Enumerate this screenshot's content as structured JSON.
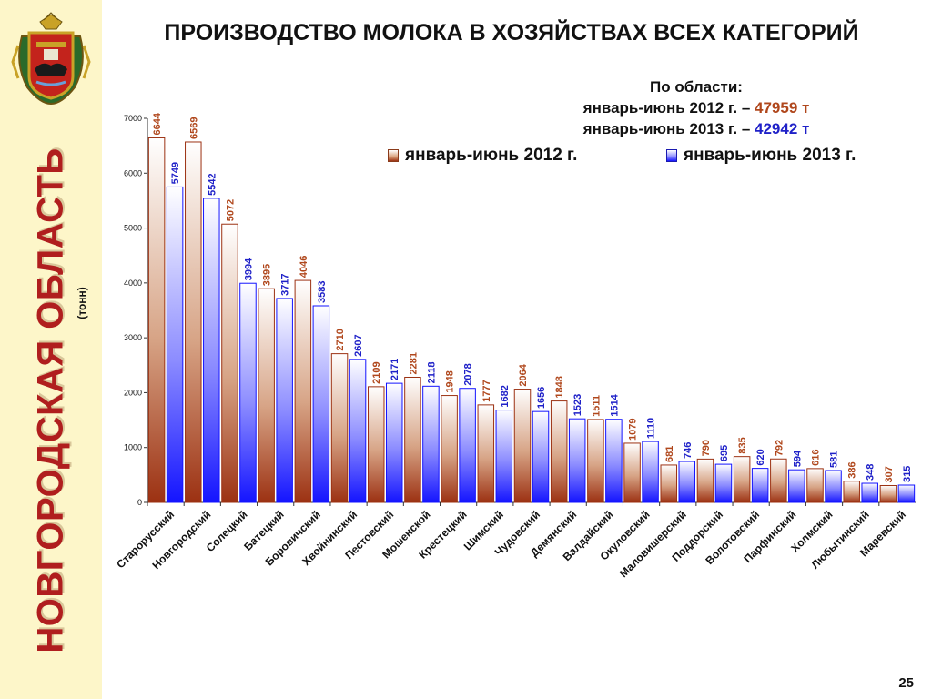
{
  "slide": {
    "title": "ПРОИЗВОДСТВО МОЛОКА В ХОЗЯЙСТВАХ ВСЕХ КАТЕГОРИЙ",
    "side_title": "НОВГОРОДСКАЯ ОБЛАСТЬ",
    "page_number": "25",
    "emblem_icon": "coat-of-arms-icon"
  },
  "totals": {
    "heading": "По области:",
    "line_2012_label": "январь-июнь 2012 г. – ",
    "line_2012_value": "47959 т",
    "line_2013_label": "январь-июнь 2013 г. – ",
    "line_2013_value": "42942 т"
  },
  "chart_data": {
    "type": "bar",
    "title": "ПРОИЗВОДСТВО МОЛОКА В ХОЗЯЙСТВАХ ВСЕХ КАТЕГОРИЙ",
    "ylabel": "(тонн)",
    "xlabel": "",
    "ylim": [
      0,
      7000
    ],
    "yticks": [
      0,
      1000,
      2000,
      3000,
      4000,
      5000,
      6000,
      7000
    ],
    "legend_position": "top-right",
    "grid": false,
    "categories": [
      "Старорусский",
      "Новгородский",
      "Солецкий",
      "Батецкий",
      "Боровичский",
      "Хвойнинский",
      "Пестовский",
      "Мошенской",
      "Крестецкий",
      "Шимский",
      "Чудовский",
      "Демянский",
      "Валдайский",
      "Окуловский",
      "Маловишерский",
      "Поддорский",
      "Волотовский",
      "Парфинский",
      "Холмский",
      "Любытинский",
      "Маревский"
    ],
    "series": [
      {
        "name": "январь-июнь 2012 г.",
        "color": "#9c3112",
        "label_color": "#b0471c",
        "values": [
          6644,
          6569,
          5072,
          3895,
          4046,
          2710,
          2109,
          2281,
          1948,
          1777,
          2064,
          1848,
          1511,
          1079,
          681,
          790,
          835,
          792,
          616,
          386,
          307
        ]
      },
      {
        "name": "январь-июнь 2013 г.",
        "color": "#1414ff",
        "label_color": "#1f21c8",
        "values": [
          5749,
          5542,
          3994,
          3717,
          3583,
          2607,
          2171,
          2118,
          2078,
          1682,
          1656,
          1523,
          1514,
          1110,
          746,
          695,
          620,
          594,
          581,
          348,
          315
        ]
      }
    ]
  }
}
